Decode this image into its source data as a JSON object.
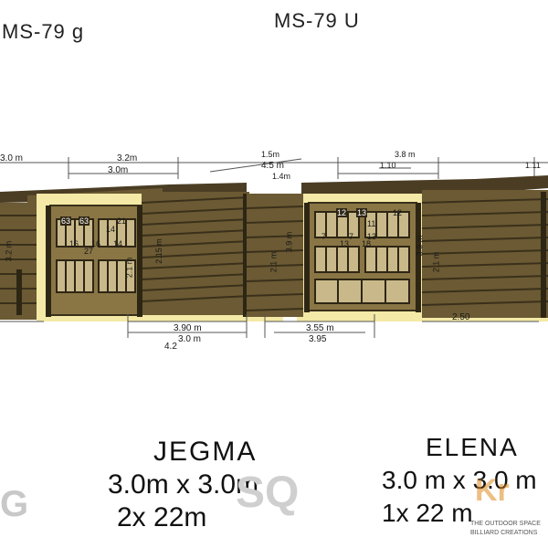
{
  "header": {
    "left_code": "MS-79 g",
    "right_code": "MS-79 U"
  },
  "colors": {
    "wood_dark": "#4a3d24",
    "wood_mid": "#6b5a33",
    "wood_light": "#8a7645",
    "accent_yellow": "#f4e9a6",
    "dimension_line": "#555555",
    "text": "#1a1a1a",
    "brand_orange": "#e08a1e"
  },
  "left_plan": {
    "top_dims": {
      "d1": "3.2m",
      "d2": "3.0m",
      "d3": "1.5m",
      "d4": "3.0 m"
    },
    "room_labels": [
      "63",
      "63",
      "21",
      "14",
      "16",
      "16",
      "14",
      "27"
    ],
    "side_dims": [
      "3.2 m",
      "2.1 m",
      "2.15 m"
    ],
    "bottom_dims": {
      "d1": "3.90 m",
      "d2": "3.0 m",
      "d3": "4.2"
    },
    "footer_title": "JEGMA",
    "footer_size": "3.0m x 3.0m",
    "footer_area": "2x 22m"
  },
  "right_plan": {
    "top_dims": {
      "d1": "4.5 m",
      "d2": "1.4m",
      "d3": "1.10",
      "d4": "3.8 m",
      "d5": "1.11"
    },
    "room_labels": [
      "12",
      "13",
      "12",
      "11",
      "7",
      "7",
      "13",
      "13",
      "18"
    ],
    "side_dims": [
      "2.1 m",
      "3.9 m",
      "2.1 m",
      "3.9 m"
    ],
    "bottom_dims": {
      "d1": "3.55 m",
      "d2": "3.95",
      "d3": "2.50"
    },
    "footer_title": "ELENA",
    "footer_size": "3.0 m x 3.0 m",
    "footer_area": "1x 22 m"
  },
  "brand": {
    "small_tagline": "THE OUTDOOR SPACE",
    "small_tagline_2": "BILLIARD CREATIONS"
  }
}
